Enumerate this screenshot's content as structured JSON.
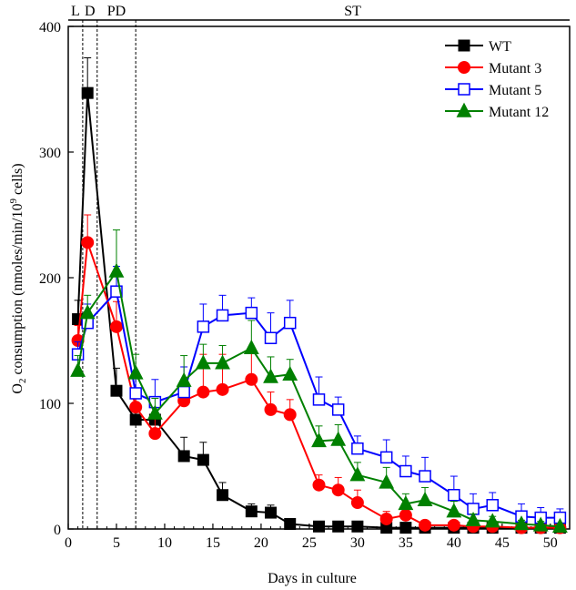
{
  "chart_data": {
    "type": "line",
    "title": "",
    "xlabel": "Days in culture",
    "ylabel_main": "O",
    "ylabel_sub": "2",
    "ylabel_mid": " consumption (nmoles/min/10",
    "ylabel_sup": "9",
    "ylabel_end": " cells)",
    "xlim": [
      0,
      52
    ],
    "ylim": [
      0,
      400
    ],
    "xticks": [
      0,
      5,
      10,
      15,
      20,
      25,
      30,
      35,
      40,
      45,
      50
    ],
    "yticks": [
      0,
      100,
      200,
      300,
      400
    ],
    "grid": false,
    "legend_position": "top-right",
    "phases": [
      {
        "label": "L",
        "start": 0,
        "end": 1.5
      },
      {
        "label": "D",
        "start": 1.5,
        "end": 3
      },
      {
        "label": "PD",
        "start": 3,
        "end": 7
      },
      {
        "label": "ST",
        "start": 7,
        "end": 52
      }
    ],
    "series": [
      {
        "name": "WT",
        "color": "#000000",
        "marker": "filled-square",
        "x": [
          1,
          2,
          5,
          7,
          9,
          12,
          14,
          16,
          19,
          21,
          23,
          26,
          28,
          30,
          33,
          35,
          37,
          40,
          42,
          44,
          47,
          49,
          51
        ],
        "y": [
          167,
          347,
          110,
          87,
          87,
          58,
          55,
          27,
          14,
          13,
          4,
          2,
          2,
          2,
          1,
          1,
          1,
          1,
          1,
          1,
          1,
          1,
          1
        ],
        "err": [
          15,
          28,
          18,
          12,
          10,
          15,
          14,
          10,
          6,
          6,
          3,
          2,
          2,
          2,
          1,
          1,
          1,
          1,
          1,
          1,
          1,
          1,
          1
        ]
      },
      {
        "name": "Mutant 3",
        "color": "#ff0000",
        "marker": "filled-circle",
        "x": [
          1,
          2,
          5,
          7,
          9,
          12,
          14,
          16,
          19,
          21,
          23,
          26,
          28,
          30,
          33,
          35,
          37,
          40,
          42,
          44,
          47,
          49,
          51
        ],
        "y": [
          150,
          228,
          161,
          97,
          76,
          102,
          109,
          111,
          119,
          95,
          91,
          35,
          31,
          21,
          8,
          11,
          3,
          3,
          2,
          2,
          1,
          1,
          1
        ],
        "err": [
          12,
          22,
          20,
          15,
          12,
          15,
          30,
          28,
          25,
          14,
          12,
          8,
          10,
          10,
          6,
          6,
          3,
          3,
          2,
          2,
          1,
          1,
          1
        ]
      },
      {
        "name": "Mutant 5",
        "color": "#0000ff",
        "marker": "open-square",
        "x": [
          1,
          2,
          5,
          7,
          9,
          12,
          14,
          16,
          19,
          21,
          23,
          26,
          28,
          30,
          33,
          35,
          37,
          40,
          42,
          44,
          47,
          49,
          51
        ],
        "y": [
          139,
          164,
          189,
          108,
          101,
          109,
          161,
          170,
          172,
          152,
          164,
          103,
          95,
          64,
          57,
          46,
          42,
          27,
          16,
          19,
          10,
          9,
          9
        ],
        "err": [
          10,
          15,
          20,
          15,
          18,
          20,
          18,
          16,
          12,
          20,
          18,
          18,
          10,
          10,
          14,
          12,
          15,
          15,
          12,
          10,
          10,
          8,
          7
        ]
      },
      {
        "name": "Mutant 12",
        "color": "#008000",
        "marker": "filled-triangle",
        "x": [
          1,
          2,
          5,
          7,
          9,
          12,
          14,
          16,
          19,
          21,
          23,
          26,
          28,
          30,
          33,
          35,
          37,
          40,
          42,
          44,
          47,
          49,
          51
        ],
        "y": [
          126,
          172,
          205,
          124,
          92,
          118,
          132,
          132,
          144,
          121,
          123,
          70,
          71,
          43,
          37,
          20,
          23,
          14,
          7,
          6,
          4,
          3,
          2
        ],
        "err": [
          12,
          14,
          33,
          15,
          12,
          20,
          15,
          14,
          22,
          16,
          12,
          12,
          12,
          10,
          12,
          8,
          10,
          8,
          5,
          4,
          3,
          3,
          2
        ]
      }
    ]
  }
}
